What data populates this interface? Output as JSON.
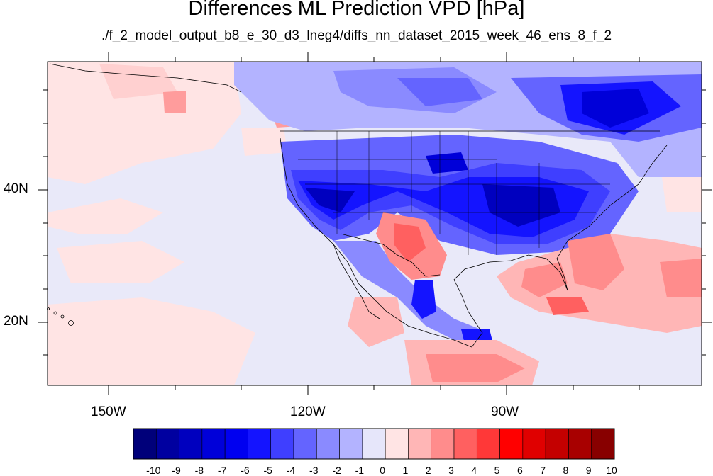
{
  "title": "Differences ML Prediction VPD [hPa]",
  "subtitle": "./f_2_model_output_b8_e_30_d3_lneg4/diffs_nn_dataset_2015_week_46_ens_8_f_2",
  "map": {
    "projection": "cylindrical-equidistant",
    "region": "North America / Pacific",
    "lon_range": [
      -160,
      -62
    ],
    "lat_range": [
      11,
      60
    ]
  },
  "lat_labels": [
    "40N",
    "20N"
  ],
  "lon_labels": [
    "150W",
    "120W",
    "90W"
  ],
  "colorbar": {
    "labels": [
      "-10",
      "-9",
      "-8",
      "-7",
      "-6",
      "-5",
      "-4",
      "-3",
      "-2",
      "-1",
      "0",
      "1",
      "2",
      "3",
      "4",
      "5",
      "6",
      "7",
      "8",
      "9",
      "10"
    ],
    "colors": [
      "#00007a",
      "#0000a0",
      "#0000bf",
      "#0000d9",
      "#0000f0",
      "#1414ff",
      "#3f3fff",
      "#6464ff",
      "#8a8aff",
      "#b3b3ff",
      "#e6e6fa",
      "#ffe4e4",
      "#ffb6b6",
      "#ff8c8c",
      "#ff6060",
      "#ff3838",
      "#ff0000",
      "#e00000",
      "#c40000",
      "#a80000",
      "#880000"
    ]
  },
  "field_colors": {
    "ocean_neutral": "#e9e9f9",
    "weak_positive": "#ffe4e4",
    "strong_negative": "#0000d9",
    "strong_positive": "#ff6060"
  }
}
